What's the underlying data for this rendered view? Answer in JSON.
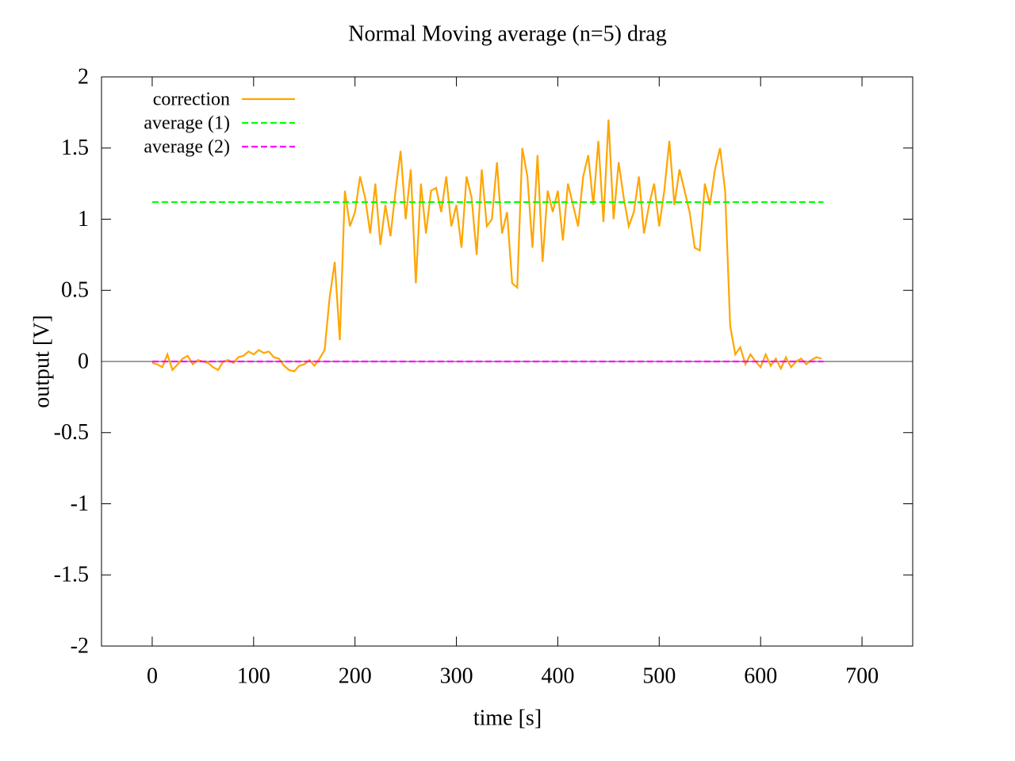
{
  "chart_data": {
    "type": "line",
    "title": "Normal  Moving average (n=5) drag",
    "xlabel": "time [s]",
    "ylabel": "output [V]",
    "xlim": [
      -50,
      750
    ],
    "ylim": [
      -2,
      2
    ],
    "xticks": [
      0,
      100,
      200,
      300,
      400,
      500,
      600,
      700
    ],
    "yticks": [
      -2,
      -1.5,
      -1,
      -0.5,
      0,
      0.5,
      1,
      1.5,
      2
    ],
    "zeroaxis": true,
    "legend": "top-left",
    "series": [
      {
        "name": "correction",
        "color": "#ffa500",
        "dash": false,
        "x": [
          0,
          5,
          10,
          15,
          20,
          25,
          30,
          35,
          40,
          45,
          50,
          55,
          60,
          65,
          70,
          75,
          80,
          85,
          90,
          95,
          100,
          105,
          110,
          115,
          120,
          125,
          130,
          135,
          140,
          145,
          150,
          155,
          160,
          165,
          170,
          175,
          180,
          185,
          190,
          195,
          200,
          205,
          210,
          215,
          220,
          225,
          230,
          235,
          240,
          245,
          250,
          255,
          260,
          265,
          270,
          275,
          280,
          285,
          290,
          295,
          300,
          305,
          310,
          315,
          320,
          325,
          330,
          335,
          340,
          345,
          350,
          355,
          360,
          365,
          370,
          375,
          380,
          385,
          390,
          395,
          400,
          405,
          410,
          415,
          420,
          425,
          430,
          435,
          440,
          445,
          450,
          455,
          460,
          465,
          470,
          475,
          480,
          485,
          490,
          495,
          500,
          505,
          510,
          515,
          520,
          525,
          530,
          535,
          540,
          545,
          550,
          555,
          560,
          565,
          570,
          575,
          580,
          585,
          590,
          595,
          600,
          605,
          610,
          615,
          620,
          625,
          630,
          635,
          640,
          645,
          650,
          655,
          660
        ],
        "values": [
          -0.01,
          -0.02,
          -0.04,
          0.05,
          -0.06,
          -0.02,
          0.02,
          0.04,
          -0.02,
          0.01,
          0.0,
          -0.01,
          -0.04,
          -0.06,
          0.0,
          0.01,
          -0.01,
          0.03,
          0.04,
          0.07,
          0.05,
          0.08,
          0.06,
          0.07,
          0.03,
          0.02,
          -0.03,
          -0.06,
          -0.07,
          -0.03,
          -0.02,
          0.01,
          -0.03,
          0.02,
          0.08,
          0.45,
          0.7,
          0.15,
          1.2,
          0.95,
          1.05,
          1.3,
          1.15,
          0.9,
          1.25,
          0.82,
          1.1,
          0.88,
          1.2,
          1.48,
          1.0,
          1.35,
          0.55,
          1.25,
          0.9,
          1.2,
          1.22,
          1.05,
          1.3,
          0.95,
          1.1,
          0.8,
          1.3,
          1.15,
          0.75,
          1.35,
          0.95,
          1.0,
          1.4,
          0.9,
          1.05,
          0.55,
          0.52,
          1.5,
          1.3,
          0.8,
          1.45,
          0.7,
          1.2,
          1.05,
          1.2,
          0.85,
          1.25,
          1.1,
          0.95,
          1.3,
          1.45,
          1.1,
          1.55,
          0.98,
          1.7,
          1.0,
          1.4,
          1.15,
          0.95,
          1.05,
          1.3,
          0.9,
          1.1,
          1.25,
          0.95,
          1.2,
          1.55,
          1.1,
          1.35,
          1.2,
          1.05,
          0.8,
          0.78,
          1.25,
          1.1,
          1.35,
          1.5,
          1.2,
          0.25,
          0.05,
          0.1,
          -0.02,
          0.05,
          0.0,
          -0.04,
          0.05,
          -0.03,
          0.02,
          -0.05,
          0.03,
          -0.04,
          0.0,
          0.02,
          -0.02,
          0.01,
          0.03,
          0.02
        ]
      },
      {
        "name": "average (1)",
        "color": "#00ff00",
        "dash": true,
        "x": [
          0,
          662
        ],
        "values": [
          1.12,
          1.12
        ]
      },
      {
        "name": "average (2)",
        "color": "#ff00ff",
        "dash": true,
        "x": [
          0,
          662
        ],
        "values": [
          0,
          0
        ]
      }
    ]
  }
}
